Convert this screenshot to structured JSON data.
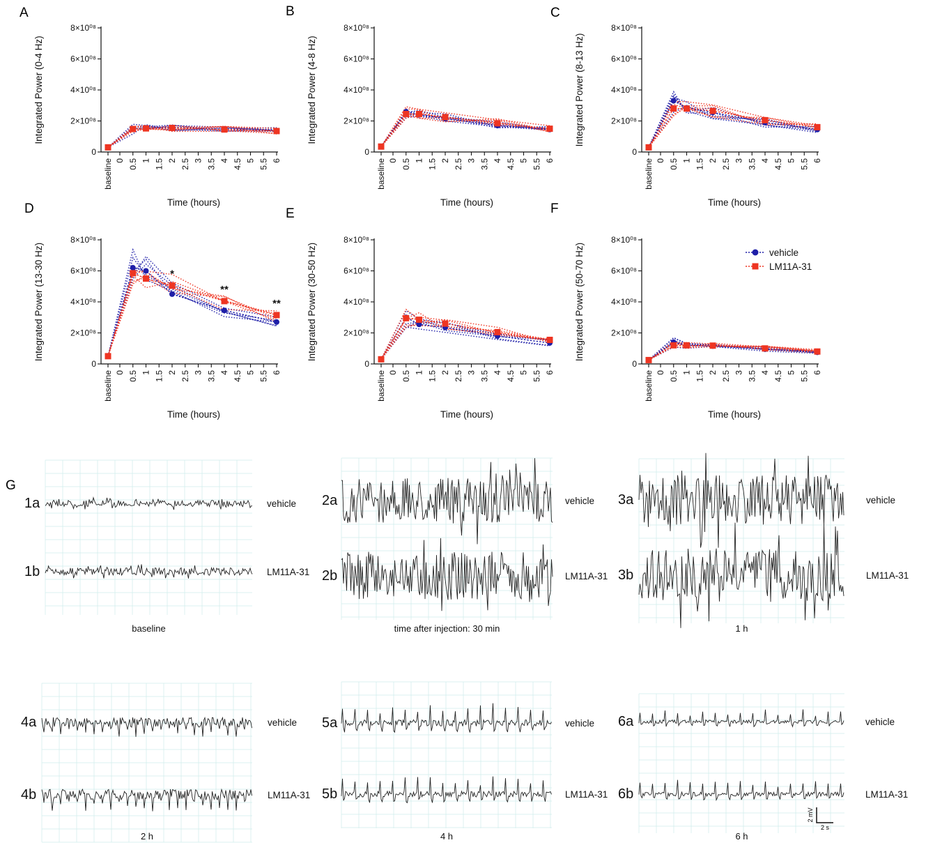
{
  "colors": {
    "vehicle": "#1f1fa8",
    "lm11a31": "#ee3522",
    "grid": "#cfeceb",
    "trace": "#222222"
  },
  "chart_data": [
    {
      "id": "A",
      "type": "line",
      "ylabel": "Integrated Power (0-4 Hz)",
      "xlabel": "Time (hours)",
      "ylim": [
        0,
        800000000
      ],
      "yticks": [
        "0",
        "2×10⁰⁸",
        "4×10⁰⁸",
        "6×10⁰⁸",
        "8×10⁰⁸"
      ],
      "xticks": [
        "baseline",
        "0",
        "0.5",
        "1",
        "1.5",
        "2",
        "2.5",
        "3",
        "3.5",
        "4",
        "4.5",
        "5",
        "5.5",
        "6"
      ],
      "x": [
        "baseline",
        0.5,
        1,
        2,
        4,
        6
      ],
      "series": [
        {
          "name": "vehicle",
          "values": [
            30000000,
            150000000,
            155000000,
            158000000,
            148000000,
            138000000
          ]
        },
        {
          "name": "LM11A-31",
          "values": [
            30000000,
            148000000,
            152000000,
            155000000,
            145000000,
            135000000
          ]
        }
      ],
      "significance": []
    },
    {
      "id": "B",
      "type": "line",
      "ylabel": "Integrated Power (4-8 Hz)",
      "xlabel": "Time (hours)",
      "ylim": [
        0,
        800000000
      ],
      "yticks": [
        "0",
        "2×10⁰⁸",
        "4×10⁰⁸",
        "6×10⁰⁸",
        "8×10⁰⁸"
      ],
      "xticks": [
        "baseline",
        "0",
        "0.5",
        "1",
        "1.5",
        "2",
        "2.5",
        "3",
        "3.5",
        "4",
        "4.5",
        "5",
        "5.5",
        "6"
      ],
      "x": [
        "baseline",
        0.5,
        1,
        2,
        4,
        6
      ],
      "series": [
        {
          "name": "vehicle",
          "values": [
            35000000,
            260000000,
            240000000,
            215000000,
            170000000,
            145000000
          ]
        },
        {
          "name": "LM11A-31",
          "values": [
            35000000,
            245000000,
            245000000,
            225000000,
            185000000,
            150000000
          ]
        }
      ],
      "significance": []
    },
    {
      "id": "C",
      "type": "line",
      "ylabel": "Integrated Power (8-13 Hz)",
      "xlabel": "Time (hours)",
      "ylim": [
        0,
        800000000
      ],
      "yticks": [
        "0",
        "2×10⁰⁸",
        "4×10⁰⁸",
        "6×10⁰⁸",
        "8×10⁰⁸"
      ],
      "xticks": [
        "baseline",
        "0",
        "0.5",
        "1",
        "1.5",
        "2",
        "2.5",
        "3",
        "3.5",
        "4",
        "4.5",
        "5",
        "5.5",
        "6"
      ],
      "x": [
        "baseline",
        0.5,
        1,
        2,
        4,
        6
      ],
      "series": [
        {
          "name": "vehicle",
          "values": [
            30000000,
            330000000,
            285000000,
            255000000,
            190000000,
            145000000
          ]
        },
        {
          "name": "LM11A-31",
          "values": [
            30000000,
            280000000,
            280000000,
            265000000,
            205000000,
            160000000
          ]
        }
      ],
      "significance": []
    },
    {
      "id": "D",
      "type": "line",
      "ylabel": "Integrated Power (13-30 Hz)",
      "xlabel": "Time (hours)",
      "ylim": [
        0,
        800000000
      ],
      "yticks": [
        "0",
        "2×10⁰⁸",
        "4×10⁰⁸",
        "6×10⁰⁸",
        "8×10⁰⁸"
      ],
      "xticks": [
        "baseline",
        "0",
        "0.5",
        "1",
        "1.5",
        "2",
        "2.5",
        "3",
        "3.5",
        "4",
        "4.5",
        "5",
        "5.5",
        "6"
      ],
      "x": [
        "baseline",
        0.5,
        1,
        2,
        4,
        6
      ],
      "series": [
        {
          "name": "vehicle",
          "values": [
            50000000,
            620000000,
            600000000,
            450000000,
            345000000,
            270000000
          ]
        },
        {
          "name": "LM11A-31",
          "values": [
            50000000,
            585000000,
            550000000,
            505000000,
            405000000,
            315000000
          ]
        }
      ],
      "significance": [
        {
          "x": 2,
          "label": "*"
        },
        {
          "x": 4,
          "label": "**"
        },
        {
          "x": 6,
          "label": "**"
        }
      ]
    },
    {
      "id": "E",
      "type": "line",
      "ylabel": "Integrated Power (30-50 Hz)",
      "xlabel": "Time (hours)",
      "ylim": [
        0,
        800000000
      ],
      "yticks": [
        "0",
        "2×10⁰⁸",
        "4×10⁰⁸",
        "6×10⁰⁸",
        "8×10⁰⁸"
      ],
      "xticks": [
        "baseline",
        "0",
        "0.5",
        "1",
        "1.5",
        "2",
        "2.5",
        "3",
        "3.5",
        "4",
        "4.5",
        "5",
        "5.5",
        "6"
      ],
      "x": [
        "baseline",
        0.5,
        1,
        2,
        4,
        6
      ],
      "series": [
        {
          "name": "vehicle",
          "values": [
            30000000,
            300000000,
            255000000,
            235000000,
            180000000,
            135000000
          ]
        },
        {
          "name": "LM11A-31",
          "values": [
            30000000,
            295000000,
            285000000,
            260000000,
            205000000,
            155000000
          ]
        }
      ],
      "significance": []
    },
    {
      "id": "F",
      "type": "line",
      "ylabel": "Integrated Power (50-70 Hz)",
      "xlabel": "Time (hours)",
      "ylim": [
        0,
        800000000
      ],
      "yticks": [
        "0",
        "2×10⁰⁸",
        "4×10⁰⁸",
        "6×10⁰⁸",
        "8×10⁰⁸"
      ],
      "xticks": [
        "baseline",
        "0",
        "0.5",
        "1",
        "1.5",
        "2",
        "2.5",
        "3",
        "3.5",
        "4",
        "4.5",
        "5",
        "5.5",
        "6"
      ],
      "x": [
        "baseline",
        0.5,
        1,
        2,
        4,
        6
      ],
      "series": [
        {
          "name": "vehicle",
          "values": [
            25000000,
            140000000,
            120000000,
            115000000,
            95000000,
            75000000
          ]
        },
        {
          "name": "LM11A-31",
          "values": [
            25000000,
            120000000,
            120000000,
            118000000,
            100000000,
            80000000
          ]
        }
      ],
      "significance": []
    }
  ],
  "legend": {
    "vehicle": "vehicle",
    "lm11a31": "LM11A-31",
    "placement": "inside-right of panel F"
  },
  "eeg": {
    "panel_letter": "G",
    "traces": [
      {
        "id_a": "1a",
        "id_b": "1b",
        "label_a": "vehicle",
        "label_b": "LM11A-31",
        "caption": "baseline",
        "amp_a": 0.12,
        "amp_b": 0.14,
        "period": 0
      },
      {
        "id_a": "2a",
        "id_b": "2b",
        "label_a": "vehicle",
        "label_b": "LM11A-31",
        "caption": "time after injection: 30 min",
        "amp_a": 0.85,
        "amp_b": 0.9,
        "period": 0
      },
      {
        "id_a": "3a",
        "id_b": "3b",
        "label_a": "vehicle",
        "label_b": "LM11A-31",
        "caption": "1 h",
        "amp_a": 0.95,
        "amp_b": 1.0,
        "period": 0
      },
      {
        "id_a": "4a",
        "id_b": "4b",
        "label_a": "vehicle",
        "label_b": "LM11A-31",
        "caption": "2 h",
        "amp_a": 0.85,
        "amp_b": 0.95,
        "period": 12
      },
      {
        "id_a": "5a",
        "id_b": "5b",
        "label_a": "vehicle",
        "label_b": "LM11A-31",
        "caption": "4 h",
        "amp_a": 0.55,
        "amp_b": 0.5,
        "period": 18
      },
      {
        "id_a": "6a",
        "id_b": "6b",
        "label_a": "vehicle",
        "label_b": "LM11A-31",
        "caption": "6 h",
        "amp_a": 0.3,
        "amp_b": 0.35,
        "period": 18
      }
    ],
    "scale_bar": {
      "voltage": "2 mV",
      "time": "2 s"
    }
  }
}
